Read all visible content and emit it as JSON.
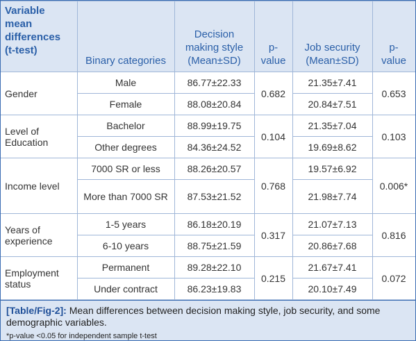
{
  "table": {
    "header": [
      "Variable mean differences (t-test)",
      "Binary categories",
      "Decision making style (Mean±SD)",
      "p-value",
      "Job security (Mean±SD)",
      "p-value"
    ],
    "groups": [
      {
        "label": "Gender",
        "p_decision": "0.682",
        "p_job": "0.653",
        "rows": [
          {
            "category": "Male",
            "decision": "86.77±22.33",
            "job": "21.35±7.41"
          },
          {
            "category": "Female",
            "decision": "88.08±20.84",
            "job": "20.84±7.51"
          }
        ]
      },
      {
        "label": "Level of Education",
        "p_decision": "0.104",
        "p_job": "0.103",
        "rows": [
          {
            "category": "Bachelor",
            "decision": "88.99±19.75",
            "job": "21.35±7.04"
          },
          {
            "category": "Other degrees",
            "decision": "84.36±24.52",
            "job": "19.69±8.62"
          }
        ]
      },
      {
        "label": "Income level",
        "p_decision": "0.768",
        "p_job": "0.006*",
        "rows": [
          {
            "category": "7000 SR or less",
            "decision": "88.26±20.57",
            "job": "19.57±6.92"
          },
          {
            "category": "More than 7000 SR",
            "decision": "87.53±21.52",
            "job": "21.98±7.74"
          }
        ]
      },
      {
        "label": "Years of experience",
        "p_decision": "0.317",
        "p_job": "0.816",
        "rows": [
          {
            "category": "1-5 years",
            "decision": "86.18±20.19",
            "job": "21.07±7.13"
          },
          {
            "category": "6-10 years",
            "decision": "88.75±21.59",
            "job": "20.86±7.68"
          }
        ]
      },
      {
        "label": "Employment status",
        "p_decision": "0.215",
        "p_job": "0.072",
        "rows": [
          {
            "category": "Permanent",
            "decision": "89.28±22.10",
            "job": "21.67±7.41"
          },
          {
            "category": "Under contract",
            "decision": "86.23±19.83",
            "job": "20.10±7.49"
          }
        ]
      }
    ]
  },
  "caption": {
    "label": "[Table/Fig-2]:",
    "text": "Mean differences between decision making style, job security, and some demographic variables.",
    "footnote": "*p-value <0.05 for independent sample t-test"
  }
}
